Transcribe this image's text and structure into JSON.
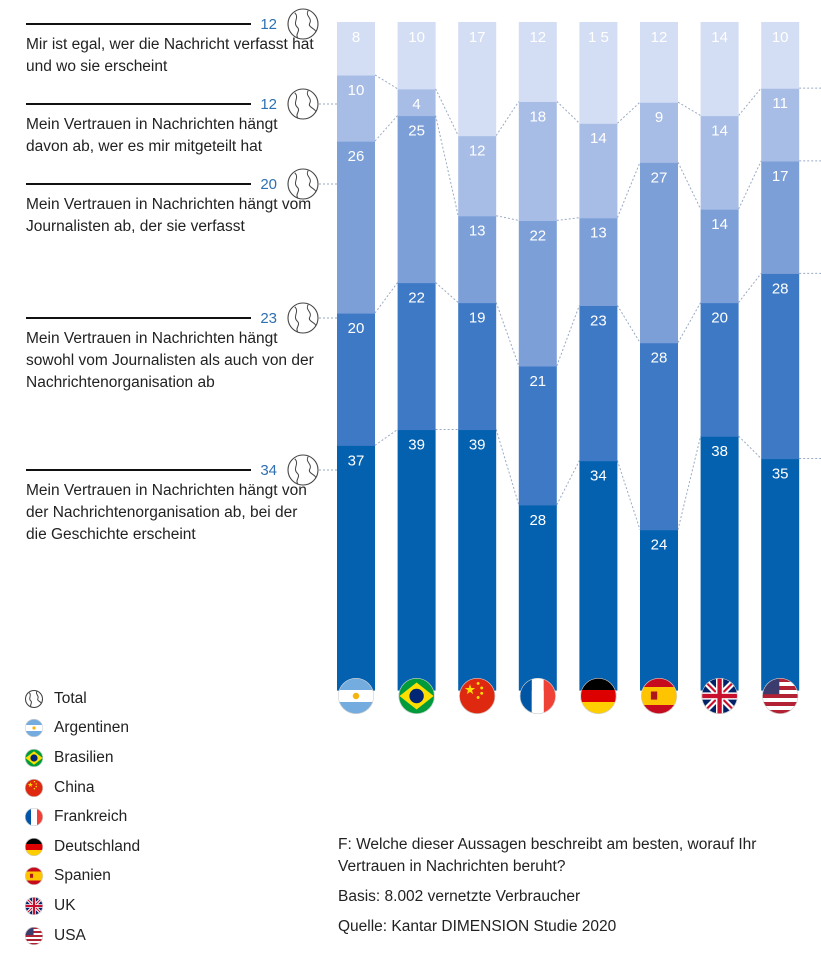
{
  "chart_data": {
    "type": "bar",
    "stacked": true,
    "orientation": "vertical",
    "categories": [
      "Argentinen",
      "Brasilien",
      "China",
      "Frankreich",
      "Deutschland",
      "Spanien",
      "UK",
      "USA"
    ],
    "value_labels": [
      [
        "37",
        "20",
        "26",
        "10",
        "8"
      ],
      [
        "39",
        "22",
        "25",
        "4",
        "10"
      ],
      [
        "39",
        "19",
        "13",
        "12",
        "17"
      ],
      [
        "28",
        "21",
        "22",
        "18",
        "12"
      ],
      [
        "34",
        "23",
        "13",
        "14",
        "1 5"
      ],
      [
        "24",
        "28",
        "27",
        "9",
        "12"
      ],
      [
        "38",
        "20",
        "14",
        "14",
        "14"
      ],
      [
        "35",
        "28",
        "17",
        "11",
        "10"
      ]
    ],
    "series": [
      {
        "name": "Mein Vertrauen in Nachrichten hängt von der Nachrichtenorganisation ab, bei der die Geschichte erscheint",
        "values": [
          37,
          39,
          39,
          28,
          34,
          24,
          38,
          35
        ],
        "total": "34",
        "color": "#0361b0"
      },
      {
        "name": "Mein Vertrauen in Nachrichten hängt sowohl vom Journalisten als auch von der Nachrichtenorganisation ab",
        "values": [
          20,
          22,
          19,
          21,
          23,
          28,
          20,
          28
        ],
        "total": "23",
        "color": "#3e79c5"
      },
      {
        "name": "Mein Vertrauen in Nachrichten hängt vom Journalisten ab, der sie verfasst",
        "values": [
          26,
          25,
          13,
          22,
          13,
          27,
          14,
          17
        ],
        "total": "20",
        "color": "#7c9fd8"
      },
      {
        "name": "Mein Vertrauen in Nachrichten hängt davon ab, wer es mir mitgeteilt hat",
        "values": [
          10,
          4,
          12,
          18,
          14,
          9,
          14,
          11
        ],
        "total": "12",
        "color": "#a8bde6"
      },
      {
        "name": "Mir ist egal, wer die Nachricht verfasst hat und wo sie erscheint",
        "values": [
          8,
          10,
          17,
          12,
          15,
          12,
          14,
          10
        ],
        "total": "12",
        "color": "#d3ddf3"
      }
    ],
    "legend": {
      "position": "bottom-left",
      "entries": [
        "Total",
        "Argentinen",
        "Brasilien",
        "China",
        "Frankreich",
        "Deutschland",
        "Spanien",
        "UK",
        "USA"
      ]
    },
    "grid": false,
    "title": "",
    "xlabel": "",
    "ylabel": ""
  },
  "notes": {
    "question": "F: Welche dieser Aussagen beschreibt am besten, worauf Ihr Vertrauen in Nachrichten beruht?",
    "basis": "Basis: 8.002 vernetzte Verbraucher",
    "source": "Quelle: Kantar DIMENSION Studie 2020"
  },
  "flag_icons": [
    "argentina-flag-icon",
    "brazil-flag-icon",
    "china-flag-icon",
    "france-flag-icon",
    "germany-flag-icon",
    "spain-flag-icon",
    "uk-flag-icon",
    "usa-flag-icon"
  ],
  "total_icon": "globe-icon"
}
